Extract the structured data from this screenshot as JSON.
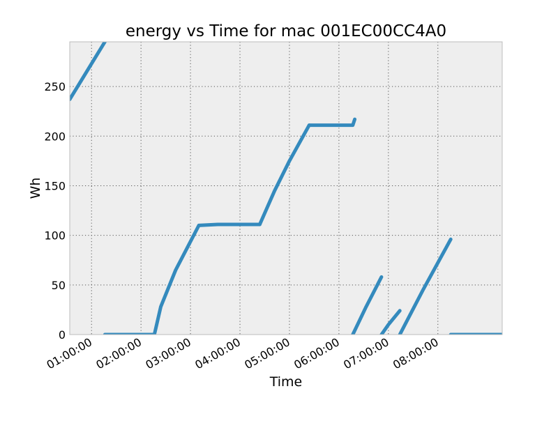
{
  "chart_data": {
    "type": "scatter",
    "title": "energy vs Time for mac 001EC00CC4A0",
    "xlabel": "Time",
    "ylabel": "Wh",
    "xlim": [
      0.56,
      9.3
    ],
    "ylim": [
      0,
      295
    ],
    "x_ticks": [
      {
        "value": 1,
        "label": "01:00:00"
      },
      {
        "value": 2,
        "label": "02:00:00"
      },
      {
        "value": 3,
        "label": "03:00:00"
      },
      {
        "value": 4,
        "label": "04:00:00"
      },
      {
        "value": 5,
        "label": "05:00:00"
      },
      {
        "value": 6,
        "label": "06:00:00"
      },
      {
        "value": 7,
        "label": "07:00:00"
      },
      {
        "value": 8,
        "label": "08:00:00"
      }
    ],
    "y_ticks": [
      0,
      50,
      100,
      150,
      200,
      250
    ],
    "grid": true,
    "colors": {
      "series": "#348abd",
      "plot_bg": "#eeeeee",
      "grid": "#555555"
    },
    "series": [
      {
        "x": [
          0.56,
          1.27
        ],
        "y": [
          237,
          295
        ]
      },
      {
        "x": [
          1.27,
          2.27
        ],
        "y": [
          0,
          0
        ]
      },
      {
        "x": [
          2.27,
          2.4,
          2.7,
          3.17
        ],
        "y": [
          0,
          28,
          65,
          110
        ]
      },
      {
        "x": [
          3.17,
          3.55,
          4.4
        ],
        "y": [
          110,
          111,
          111
        ]
      },
      {
        "x": [
          4.4,
          4.7,
          5.0,
          5.4
        ],
        "y": [
          111,
          145,
          175,
          211
        ]
      },
      {
        "x": [
          5.4,
          5.85,
          6.28,
          6.32
        ],
        "y": [
          211,
          211,
          211,
          217
        ]
      },
      {
        "x": [
          6.28,
          6.55,
          6.86
        ],
        "y": [
          0,
          28,
          58
        ]
      },
      {
        "x": [
          6.86,
          7.0,
          7.23
        ],
        "y": [
          0,
          10,
          24
        ]
      },
      {
        "x": [
          7.23,
          7.7,
          8.26
        ],
        "y": [
          0,
          45,
          96
        ]
      },
      {
        "x": [
          8.26,
          8.7,
          9.3
        ],
        "y": [
          0,
          0,
          0
        ]
      }
    ]
  }
}
